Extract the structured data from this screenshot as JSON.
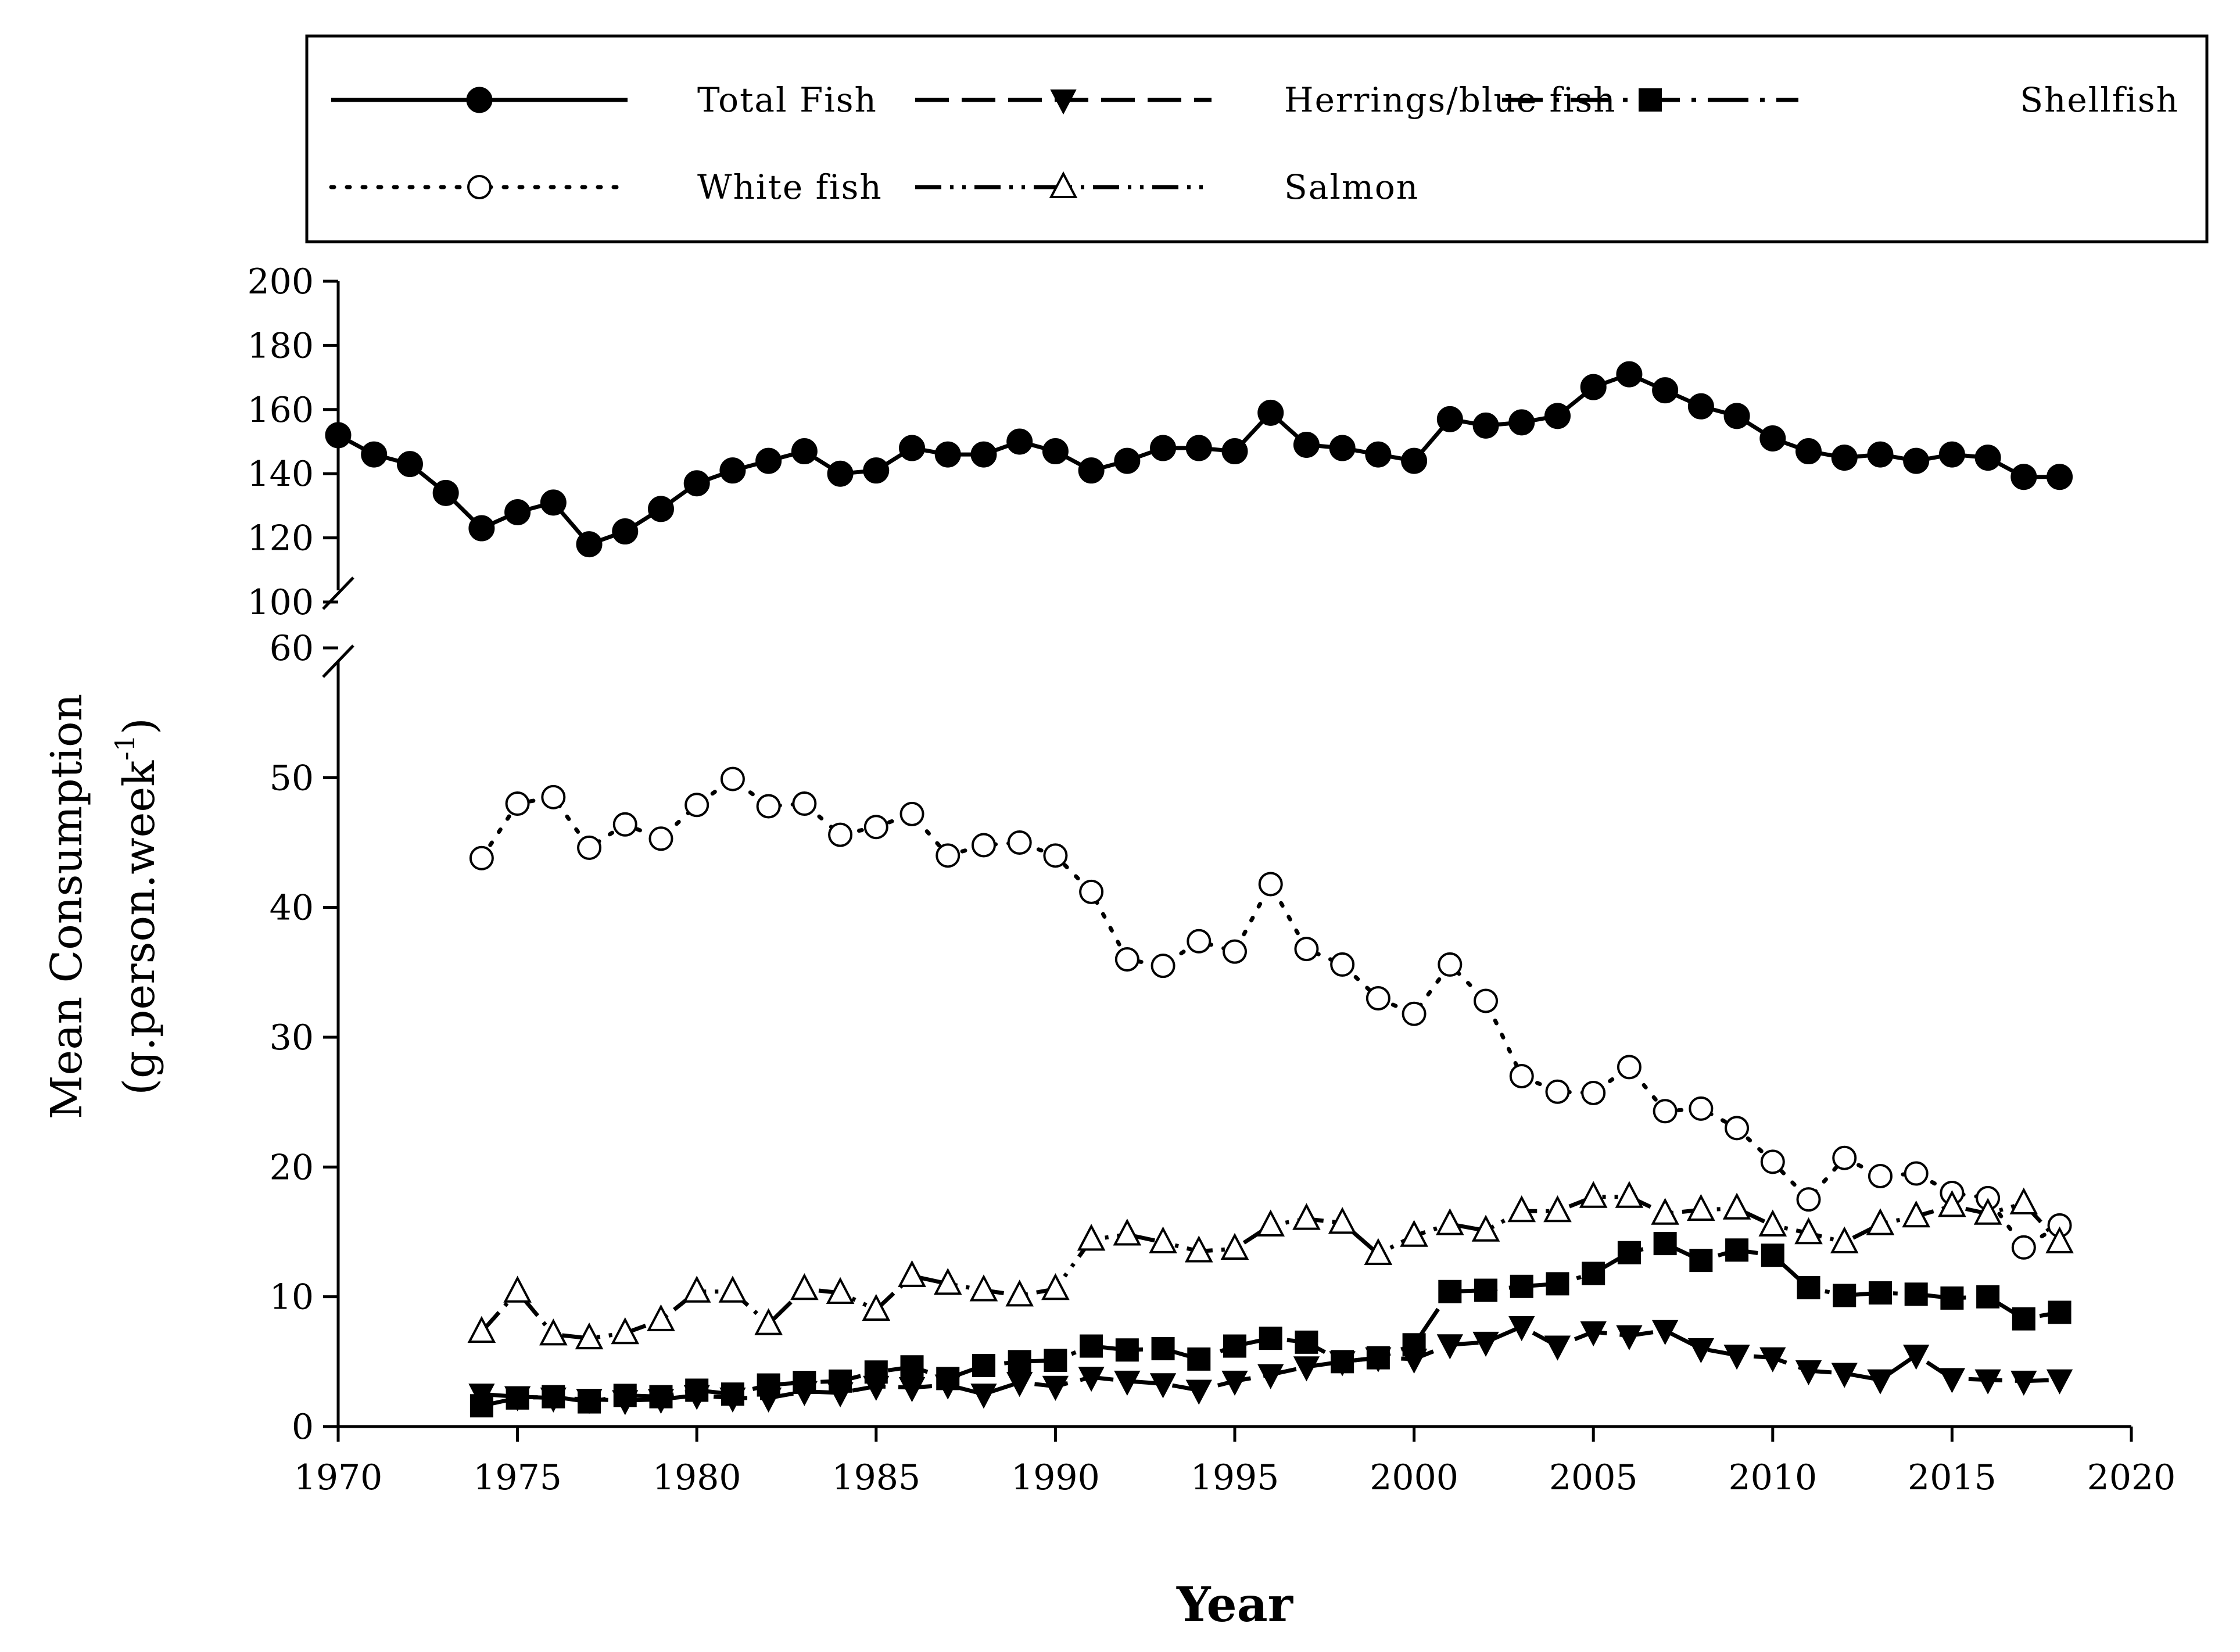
{
  "chart_data": {
    "type": "line",
    "title": "",
    "xlabel": "Year",
    "ylabel_line1": "Mean Consumption",
    "ylabel_line2": "(g.person.week",
    "ylabel_sup": "-1",
    "ylabel_close": ")",
    "xlim": [
      1970,
      2020
    ],
    "x_ticks": [
      "1970",
      "1975",
      "1980",
      "1985",
      "1990",
      "1995",
      "2000",
      "2005",
      "2010",
      "2015",
      "2020"
    ],
    "ylim_upper": [
      100,
      200
    ],
    "ylim_lower": [
      0,
      60
    ],
    "y_ticks_upper": [
      "100",
      "120",
      "140",
      "160",
      "180",
      "200"
    ],
    "y_ticks_lower": [
      "0",
      "10",
      "20",
      "30",
      "40",
      "50",
      "60"
    ],
    "axis_break": true,
    "legend_position": "top",
    "series": [
      {
        "name": "Total Fish",
        "panel": "upper",
        "line_style": "solid",
        "marker": "filled-circle",
        "x": [
          1970,
          1971,
          1972,
          1973,
          1974,
          1975,
          1976,
          1977,
          1978,
          1979,
          1980,
          1981,
          1982,
          1983,
          1984,
          1985,
          1986,
          1987,
          1988,
          1989,
          1990,
          1991,
          1992,
          1993,
          1994,
          1995,
          1996,
          1997,
          1998,
          1999,
          2000,
          2001,
          2002,
          2003,
          2004,
          2005,
          2006,
          2007,
          2008,
          2009,
          2010,
          2011,
          2012,
          2013,
          2014,
          2015,
          2016,
          2017,
          2018
        ],
        "values": [
          152,
          146,
          143,
          134,
          123,
          128,
          131,
          118,
          122,
          129,
          137,
          141,
          144,
          147,
          140,
          141,
          148,
          146,
          146,
          150,
          147,
          141,
          144,
          148,
          148,
          147,
          159,
          149,
          148,
          146,
          144,
          157,
          155,
          156,
          158,
          167,
          171,
          166,
          161,
          158,
          151,
          147,
          145,
          146,
          144,
          146,
          145,
          139,
          139
        ]
      },
      {
        "name": "Herrings/blue fish",
        "panel": "lower",
        "line_style": "dashed",
        "marker": "filled-triangle-down",
        "x": [
          1974,
          1975,
          1976,
          1977,
          1978,
          1979,
          1980,
          1981,
          1982,
          1983,
          1984,
          1985,
          1986,
          1987,
          1988,
          1989,
          1990,
          1991,
          1992,
          1993,
          1994,
          1995,
          1996,
          1997,
          1998,
          1999,
          2000,
          2001,
          2002,
          2003,
          2004,
          2005,
          2006,
          2007,
          2008,
          2009,
          2010,
          2011,
          2012,
          2013,
          2014,
          2015,
          2016,
          2017,
          2018
        ],
        "values": [
          2.5,
          2.3,
          2.2,
          2.1,
          2.0,
          2.1,
          2.4,
          2.2,
          2.2,
          2.7,
          2.6,
          3.1,
          3.0,
          3.2,
          2.5,
          3.4,
          3.1,
          3.8,
          3.5,
          3.3,
          2.8,
          3.5,
          4.0,
          4.6,
          5.0,
          5.3,
          5.2,
          6.3,
          6.5,
          7.7,
          6.2,
          7.3,
          7.0,
          7.4,
          6.0,
          5.5,
          5.3,
          4.3,
          4.1,
          3.6,
          5.5,
          3.7,
          3.6,
          3.5,
          3.6
        ]
      },
      {
        "name": "Shellfish",
        "panel": "lower",
        "line_style": "long-dash-dot",
        "marker": "filled-square",
        "x": [
          1974,
          1975,
          1976,
          1977,
          1978,
          1979,
          1980,
          1981,
          1982,
          1983,
          1984,
          1985,
          1986,
          1987,
          1988,
          1989,
          1990,
          1991,
          1992,
          1993,
          1994,
          1995,
          1996,
          1997,
          1998,
          1999,
          2000,
          2001,
          2002,
          2003,
          2004,
          2005,
          2006,
          2007,
          2008,
          2009,
          2010,
          2011,
          2012,
          2013,
          2014,
          2015,
          2016,
          2017,
          2018
        ],
        "values": [
          1.6,
          2.2,
          2.3,
          1.9,
          2.4,
          2.3,
          2.8,
          2.5,
          3.2,
          3.4,
          3.5,
          4.2,
          4.6,
          3.7,
          4.7,
          5.0,
          5.1,
          6.2,
          5.9,
          6.0,
          5.2,
          6.2,
          6.8,
          6.5,
          5.0,
          5.3,
          6.3,
          10.4,
          10.5,
          10.8,
          11.0,
          11.8,
          13.4,
          14.1,
          12.8,
          13.6,
          13.2,
          10.7,
          10.1,
          10.3,
          10.2,
          9.9,
          10.0,
          8.3,
          8.8
        ]
      },
      {
        "name": "White fish",
        "panel": "lower",
        "line_style": "dotted",
        "marker": "open-circle",
        "x": [
          1974,
          1975,
          1976,
          1977,
          1978,
          1979,
          1980,
          1981,
          1982,
          1983,
          1984,
          1985,
          1986,
          1987,
          1988,
          1989,
          1990,
          1991,
          1992,
          1993,
          1994,
          1995,
          1996,
          1997,
          1998,
          1999,
          2000,
          2001,
          2002,
          2003,
          2004,
          2005,
          2006,
          2007,
          2008,
          2009,
          2010,
          2011,
          2012,
          2013,
          2014,
          2015,
          2016,
          2017,
          2018
        ],
        "values": [
          43.8,
          48.0,
          48.5,
          44.6,
          46.4,
          45.3,
          47.9,
          49.9,
          47.8,
          48.0,
          45.6,
          46.2,
          47.2,
          44.0,
          44.8,
          45.0,
          44.0,
          41.2,
          36.0,
          35.5,
          37.4,
          36.6,
          41.8,
          36.8,
          35.6,
          33.0,
          31.8,
          35.6,
          32.8,
          27.0,
          25.8,
          25.7,
          27.7,
          24.3,
          24.5,
          23.0,
          20.4,
          17.5,
          20.7,
          19.3,
          19.5,
          18.0,
          17.6,
          13.8,
          15.5
        ]
      },
      {
        "name": "Salmon",
        "panel": "lower",
        "line_style": "dash-dot-dot",
        "marker": "open-triangle-up",
        "x": [
          1974,
          1975,
          1976,
          1977,
          1978,
          1979,
          1980,
          1981,
          1982,
          1983,
          1984,
          1985,
          1986,
          1987,
          1988,
          1989,
          1990,
          1991,
          1992,
          1993,
          1994,
          1995,
          1996,
          1997,
          1998,
          1999,
          2000,
          2001,
          2002,
          2003,
          2004,
          2005,
          2006,
          2007,
          2008,
          2009,
          2010,
          2011,
          2012,
          2013,
          2014,
          2015,
          2016,
          2017,
          2018
        ],
        "values": [
          7.3,
          10.4,
          7.1,
          6.8,
          7.2,
          8.2,
          10.4,
          10.4,
          7.9,
          10.6,
          10.3,
          9.0,
          11.6,
          11.0,
          10.5,
          10.1,
          10.6,
          14.4,
          14.8,
          14.2,
          13.5,
          13.7,
          15.5,
          16.0,
          15.7,
          13.3,
          14.7,
          15.6,
          15.1,
          16.6,
          16.6,
          17.7,
          17.7,
          16.4,
          16.7,
          16.8,
          15.5,
          14.9,
          14.2,
          15.6,
          16.2,
          17.0,
          16.4,
          17.2,
          14.2
        ]
      }
    ]
  }
}
